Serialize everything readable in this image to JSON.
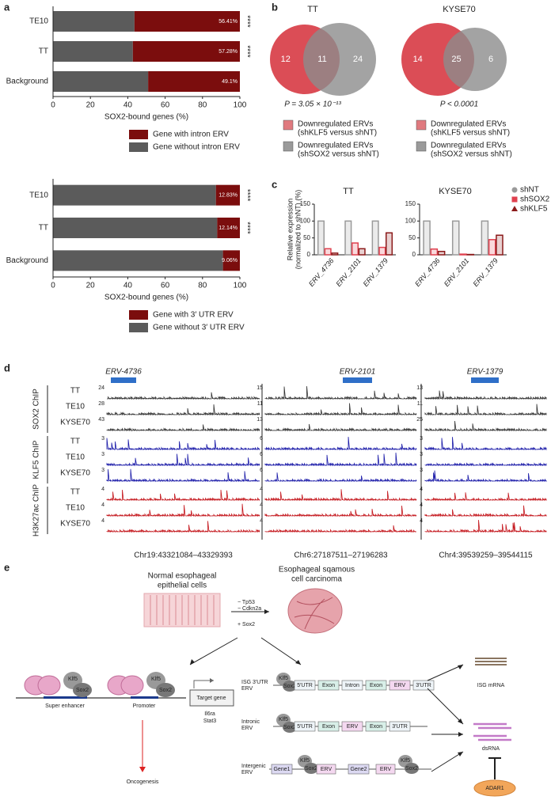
{
  "panel_labels": [
    "a",
    "b",
    "c",
    "d",
    "e"
  ],
  "chart_data": [
    {
      "type": "stacked-hbar",
      "categories": [
        "TE10",
        "TT",
        "Background"
      ],
      "series": [
        {
          "name": "Gene with intron ERV",
          "color": "#7b0d0d",
          "values": [
            56.41,
            57.28,
            49.1
          ],
          "value_labels": [
            "56.41%",
            "57.28%",
            "49.1%"
          ]
        },
        {
          "name": "Gene without intron ERV",
          "color": "#5b5b5b",
          "values": [
            43.59,
            42.72,
            50.9
          ]
        }
      ],
      "annotations": [
        "****",
        "****",
        null
      ],
      "xlim": [
        0,
        100
      ],
      "xticks": [
        0,
        20,
        40,
        60,
        80,
        100
      ],
      "xlabel": "SOX2-bound genes (%)"
    },
    {
      "type": "stacked-hbar",
      "categories": [
        "TE10",
        "TT",
        "Background"
      ],
      "series": [
        {
          "name": "Gene with 3′ UTR ERV",
          "color": "#7b0d0d",
          "values": [
            12.83,
            12.14,
            9.06
          ],
          "value_labels": [
            "12.83%",
            "12.14%",
            "9.06%"
          ]
        },
        {
          "name": "Gene without 3′ UTR ERV",
          "color": "#5b5b5b",
          "values": [
            87.17,
            87.86,
            90.94
          ]
        }
      ],
      "annotations": [
        "****",
        "****",
        null
      ],
      "xlim": [
        0,
        100
      ],
      "xticks": [
        0,
        20,
        40,
        60,
        80,
        100
      ],
      "xlabel": "SOX2-bound genes (%)"
    },
    {
      "type": "venn",
      "title": "TT",
      "values": [
        12,
        11,
        24
      ],
      "colors": [
        "#d9434d",
        "#8c8c8c"
      ],
      "p_value": "P = 3.05 × 10⁻¹³",
      "legend": [
        {
          "name": "Downregulated ERVs",
          "detail": "(shKLF5 versus shNT)",
          "color": "#e07a7f"
        },
        {
          "name": "Downregulated ERVs",
          "detail": "(shSOX2 versus shNT)",
          "color": "#9a9a9a"
        }
      ]
    },
    {
      "type": "venn",
      "title": "KYSE70",
      "values": [
        14,
        25,
        6
      ],
      "colors": [
        "#d9434d",
        "#8c8c8c"
      ],
      "p_value": "P < 0.0001",
      "legend": [
        {
          "name": "Downregulated ERVs",
          "detail": "(shKLF5 versus shNT)",
          "color": "#e07a7f"
        },
        {
          "name": "Downregulated ERVs",
          "detail": "(shSOX2 versus shNT)",
          "color": "#9a9a9a"
        }
      ]
    },
    {
      "type": "bar",
      "title": "TT",
      "categories": [
        "ERV_4736",
        "ERV_2101",
        "ERV_1379"
      ],
      "series": [
        {
          "color": "#9a9a9a",
          "values": [
            100,
            100,
            100
          ]
        },
        {
          "color": "#e0414f",
          "values": [
            18,
            35,
            22
          ]
        },
        {
          "color": "#8b1a1a",
          "values": [
            5,
            18,
            65
          ]
        }
      ],
      "ylim": [
        0,
        150
      ],
      "yticks": [
        0,
        50,
        100,
        150
      ],
      "ylabel": [
        "Relative expression",
        "(normalized to shNT) (%)"
      ]
    },
    {
      "type": "bar",
      "title": "KYSE70",
      "categories": [
        "ERV_4736",
        "ERV_2101",
        "ERV_1379"
      ],
      "series": [
        {
          "name": "shNT",
          "marker": "circle",
          "color": "#9a9a9a",
          "values": [
            100,
            100,
            100
          ]
        },
        {
          "name": "shSOX2",
          "marker": "square",
          "color": "#e0414f",
          "values": [
            17,
            2,
            45
          ]
        },
        {
          "name": "shKLF5",
          "marker": "triangle",
          "color": "#8b1a1a",
          "values": [
            10,
            1,
            58
          ]
        }
      ],
      "ylim": [
        0,
        150
      ],
      "yticks": [
        0,
        50,
        100,
        150
      ],
      "legend": "upper right"
    }
  ],
  "panel_d": {
    "groups": [
      {
        "name": "SOX2 ChIP",
        "color": "#333333",
        "rows": [
          "TT",
          "TE10",
          "KYSE70"
        ]
      },
      {
        "name": "KLF5 ChIP",
        "color": "#1a1aa8",
        "rows": [
          "TT",
          "TE10",
          "KYSE70"
        ]
      },
      {
        "name": "H3K27ac ChIP",
        "color": "#c4161c",
        "rows": [
          "TT",
          "TE10",
          "KYSE70"
        ]
      }
    ],
    "columns": [
      {
        "erv": "ERV-4736",
        "coords": "Chr19:43321084–43329393",
        "scales": [
          24,
          28,
          43,
          3,
          3,
          3,
          4,
          4,
          4
        ]
      },
      {
        "erv": "ERV-2101",
        "coords": "Chr6:27187511–27196283",
        "scales": [
          15,
          11,
          13,
          6,
          6,
          6,
          4,
          4,
          4
        ]
      },
      {
        "erv": "ERV-1379",
        "coords": "Chr4:39539259–39544115",
        "scales": [
          13,
          11,
          25,
          3,
          3,
          3,
          4,
          4,
          4
        ]
      }
    ]
  },
  "panel_e": {
    "normal_cells": [
      "Normal esophageal",
      "epithelial cells"
    ],
    "cancer": [
      "Esophageal sqamous",
      "cell carcinoma"
    ],
    "changes": [
      "− Tp53",
      "− Cdkn2a",
      "+ Sox2"
    ],
    "factors": [
      "Klf5",
      "Sox2"
    ],
    "regions": [
      "Super enhancer",
      "Promoter"
    ],
    "target": "Target gene",
    "genes": [
      "Il6ra",
      "Stat3"
    ],
    "outcome": "Oncogenesis",
    "rows": [
      [
        "ISG 3′UTR",
        "ERV"
      ],
      [
        "Intronic",
        "ERV"
      ],
      [
        "Intergenic",
        "ERV"
      ]
    ],
    "elements": {
      "utr5": "5′UTR",
      "exon": "Exon",
      "intron": "Intron",
      "erv": "ERV",
      "utr3": "3′UTR",
      "gene1": "Gene1",
      "gene2": "Gene2"
    },
    "products": [
      "ISG mRNA",
      "dsRNA"
    ],
    "enzyme": "ADAR1"
  }
}
